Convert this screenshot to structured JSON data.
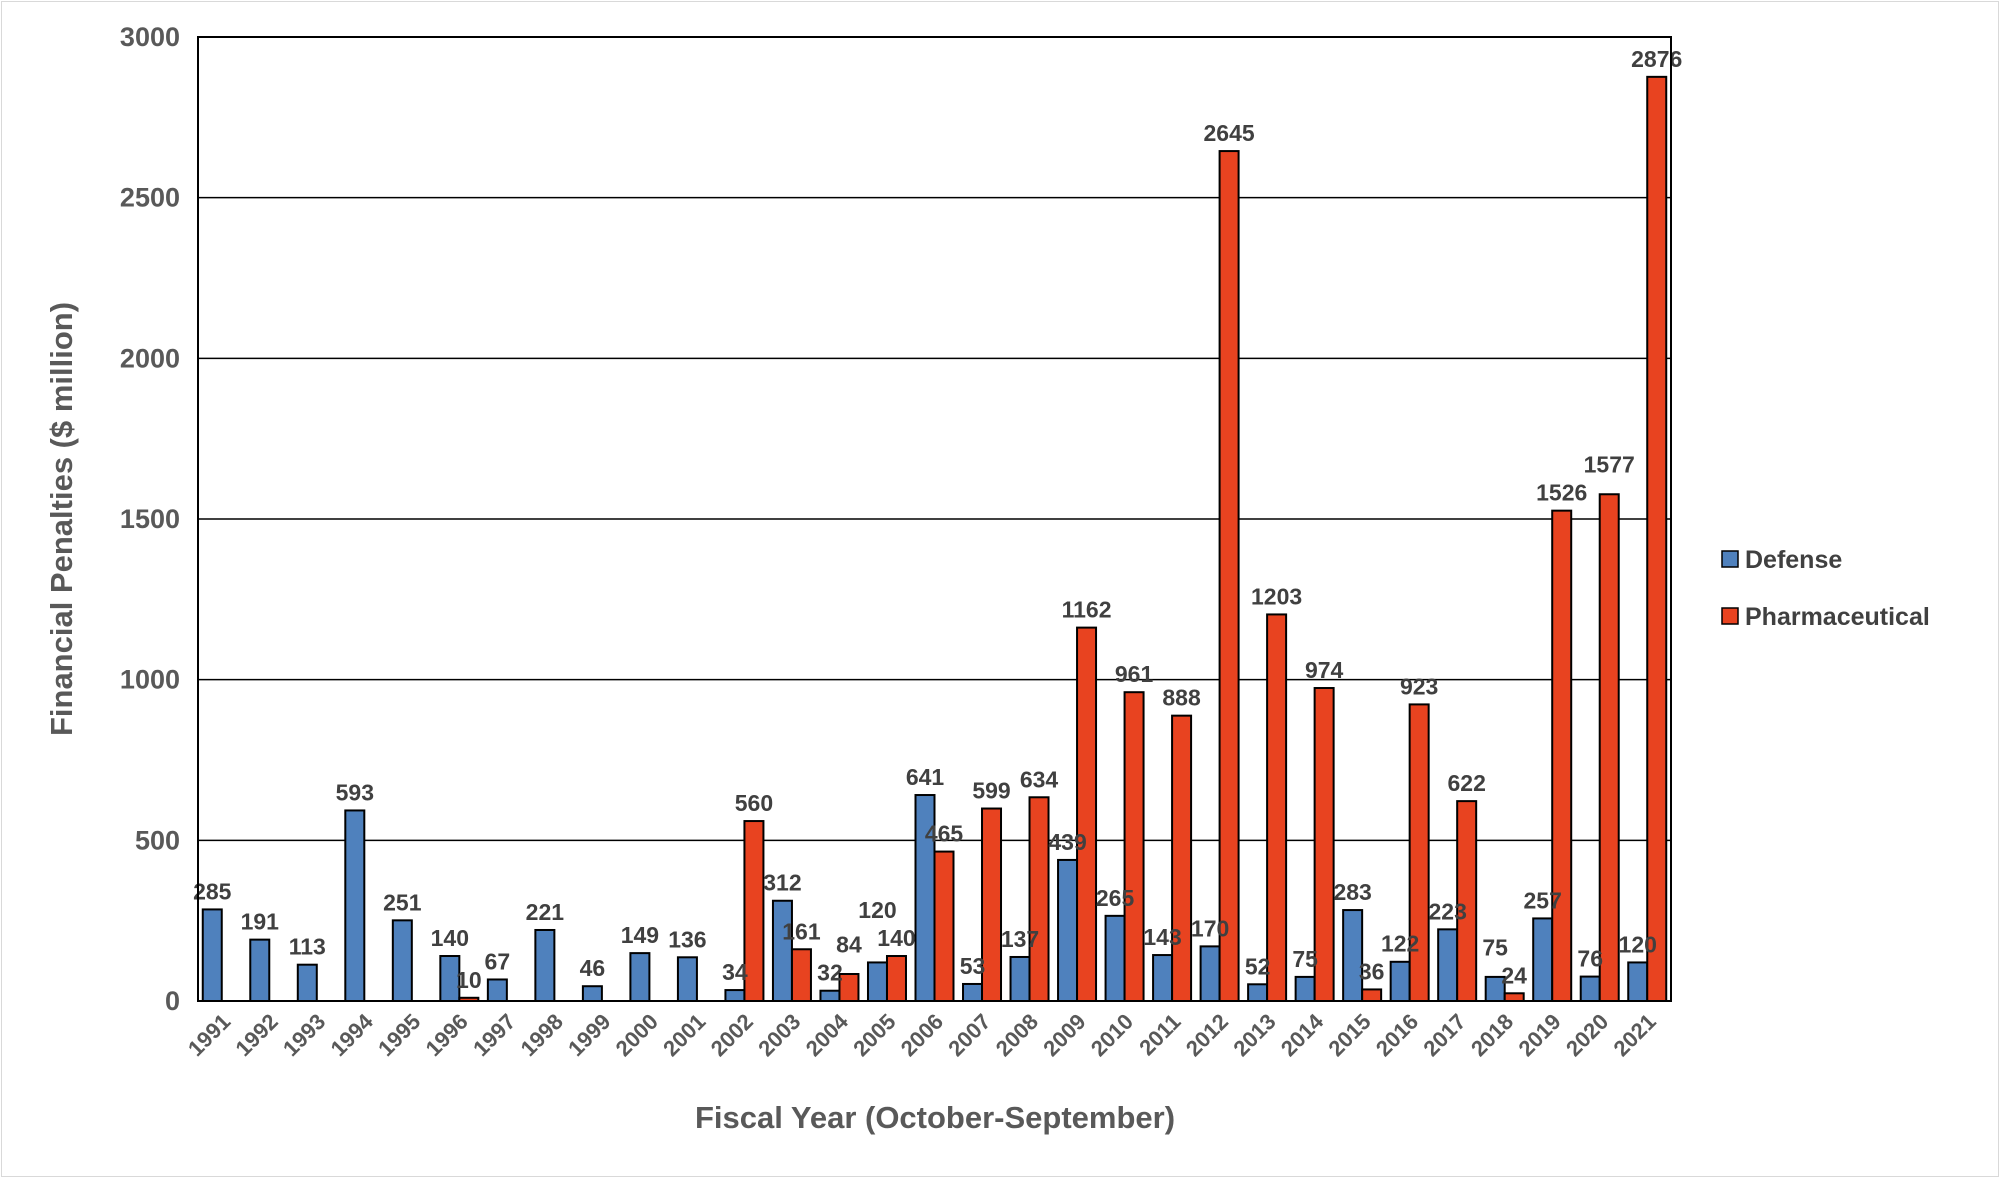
{
  "chart_data": {
    "type": "bar",
    "title": "",
    "xlabel": "Fiscal Year (October-September)",
    "ylabel": "Financial Penalties ($ million)",
    "ylim": [
      0,
      3000
    ],
    "yticks": [
      0,
      500,
      1000,
      1500,
      2000,
      2500,
      3000
    ],
    "grid": true,
    "legend_position": "right",
    "categories": [
      "1991",
      "1992",
      "1993",
      "1994",
      "1995",
      "1996",
      "1997",
      "1998",
      "1999",
      "2000",
      "2001",
      "2002",
      "2003",
      "2004",
      "2005",
      "2006",
      "2007",
      "2008",
      "2009",
      "2010",
      "2011",
      "2012",
      "2013",
      "2014",
      "2015",
      "2016",
      "2017",
      "2018",
      "2019",
      "2020",
      "2021"
    ],
    "series": [
      {
        "name": "Defense",
        "color": "#4F81BD",
        "values": [
          285,
          191,
          113,
          593,
          251,
          140,
          67,
          221,
          46,
          149,
          136,
          34,
          312,
          32,
          120,
          641,
          53,
          137,
          439,
          265,
          143,
          170,
          52,
          75,
          283,
          122,
          223,
          75,
          257,
          76,
          120
        ]
      },
      {
        "name": "Pharmaceutical",
        "color": "#E84320",
        "values": [
          null,
          null,
          null,
          null,
          null,
          10,
          null,
          null,
          null,
          null,
          null,
          560,
          161,
          84,
          140,
          465,
          599,
          634,
          1162,
          961,
          888,
          2645,
          1203,
          974,
          36,
          923,
          622,
          24,
          1526,
          1577,
          2876
        ]
      }
    ]
  }
}
